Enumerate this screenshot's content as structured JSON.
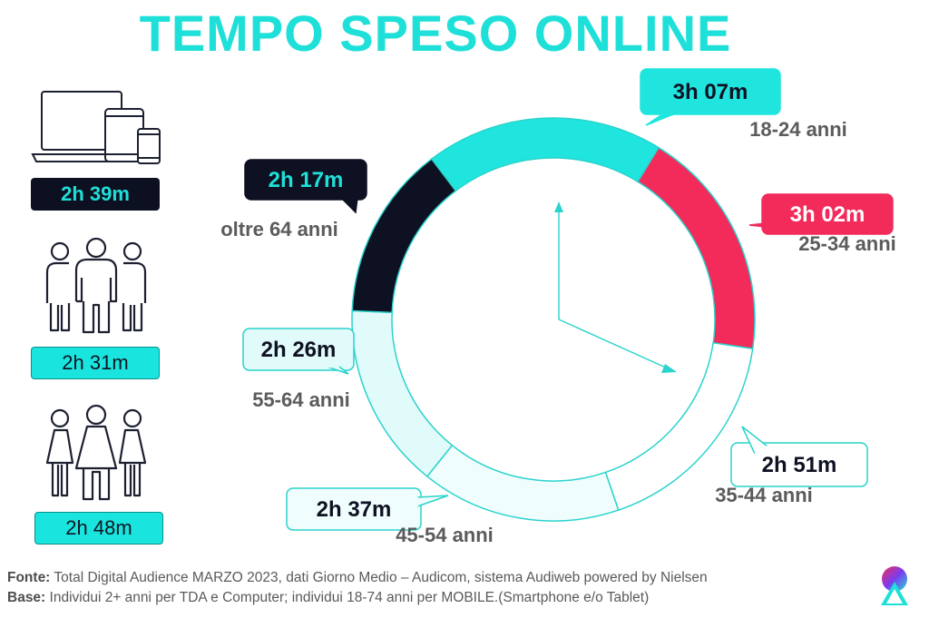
{
  "title": "TEMPO SPESO ONLINE",
  "left_panel": {
    "items": [
      {
        "icon": "devices-icon",
        "value": "2h 39m",
        "style": "dark"
      },
      {
        "icon": "men-group-icon",
        "value": "2h 31m",
        "style": "cyan"
      },
      {
        "icon": "women-group-icon",
        "value": "2h 48m",
        "style": "cyan"
      }
    ]
  },
  "chart_data": {
    "type": "pie",
    "style": "donut",
    "title": "TEMPO SPESO ONLINE",
    "categories": [
      "18-24 anni",
      "25-34 anni",
      "35-44 anni",
      "45-54 anni",
      "55-64 anni",
      "oltre 64 anni"
    ],
    "values": [
      187,
      182,
      171,
      157,
      146,
      137
    ],
    "value_labels": [
      "3h 07m",
      "3h 02m",
      "2h 51m",
      "2h 37m",
      "2h 26m",
      "2h 17m"
    ],
    "colors": [
      "#1fe5de",
      "#f22b5a",
      "#ffffff",
      "#effdfd",
      "#e1fafa",
      "#0e1122"
    ],
    "label_colors": [
      "#0e1122",
      "#ffffff",
      "#0e1122",
      "#0e1122",
      "#0e1122",
      "#1fe0d9"
    ],
    "outline_color": "#2ad3cc"
  },
  "footer": {
    "fonte_label": "Fonte:",
    "fonte_text": "Total Digital Audience MARZO 2023, dati Giorno Medio – Audicom, sistema Audiweb powered by Nielsen",
    "base_label": "Base:",
    "base_text": "Individui 2+ anni per TDA e Computer; individui 18-74 anni per MOBILE.(Smartphone e/o Tablet)"
  },
  "logo": {
    "icon": "brand-logo-icon"
  }
}
